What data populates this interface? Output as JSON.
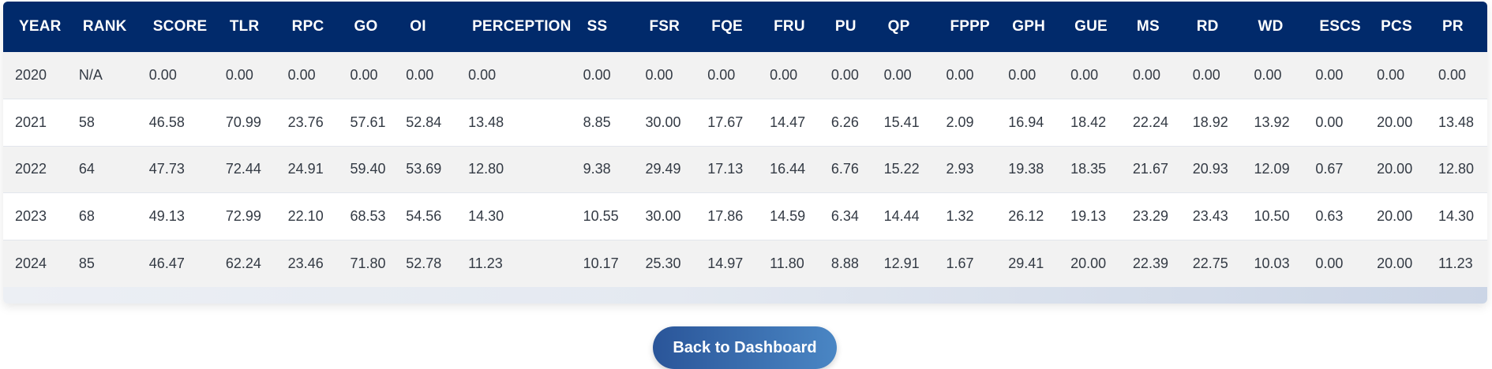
{
  "table": {
    "columns": [
      "YEAR",
      "RANK",
      "SCORE",
      "TLR",
      "RPC",
      "GO",
      "OI",
      "PERCEPTION",
      "SS",
      "FSR",
      "FQE",
      "FRU",
      "PU",
      "QP",
      "FPPP",
      "GPH",
      "GUE",
      "MS",
      "RD",
      "WD",
      "ESCS",
      "PCS",
      "PR"
    ],
    "rows": [
      [
        "2020",
        "N/A",
        "0.00",
        "0.00",
        "0.00",
        "0.00",
        "0.00",
        "0.00",
        "0.00",
        "0.00",
        "0.00",
        "0.00",
        "0.00",
        "0.00",
        "0.00",
        "0.00",
        "0.00",
        "0.00",
        "0.00",
        "0.00",
        "0.00",
        "0.00",
        "0.00"
      ],
      [
        "2021",
        "58",
        "46.58",
        "70.99",
        "23.76",
        "57.61",
        "52.84",
        "13.48",
        "8.85",
        "30.00",
        "17.67",
        "14.47",
        "6.26",
        "15.41",
        "2.09",
        "16.94",
        "18.42",
        "22.24",
        "18.92",
        "13.92",
        "0.00",
        "20.00",
        "13.48"
      ],
      [
        "2022",
        "64",
        "47.73",
        "72.44",
        "24.91",
        "59.40",
        "53.69",
        "12.80",
        "9.38",
        "29.49",
        "17.13",
        "16.44",
        "6.76",
        "15.22",
        "2.93",
        "19.38",
        "18.35",
        "21.67",
        "20.93",
        "12.09",
        "0.67",
        "20.00",
        "12.80"
      ],
      [
        "2023",
        "68",
        "49.13",
        "72.99",
        "22.10",
        "68.53",
        "54.56",
        "14.30",
        "10.55",
        "30.00",
        "17.86",
        "14.59",
        "6.34",
        "14.44",
        "1.32",
        "26.12",
        "19.13",
        "23.29",
        "23.43",
        "10.50",
        "0.63",
        "20.00",
        "14.30"
      ],
      [
        "2024",
        "85",
        "46.47",
        "62.24",
        "23.46",
        "71.80",
        "52.78",
        "11.23",
        "10.17",
        "25.30",
        "14.97",
        "11.80",
        "8.88",
        "12.91",
        "1.67",
        "29.41",
        "20.00",
        "22.39",
        "22.75",
        "10.03",
        "0.00",
        "20.00",
        "11.23"
      ]
    ]
  },
  "back_button_label": "Back to Dashboard",
  "colors": {
    "header_bg": "#012a6b",
    "button_start": "#2a5599",
    "button_end": "#4a86c4"
  }
}
